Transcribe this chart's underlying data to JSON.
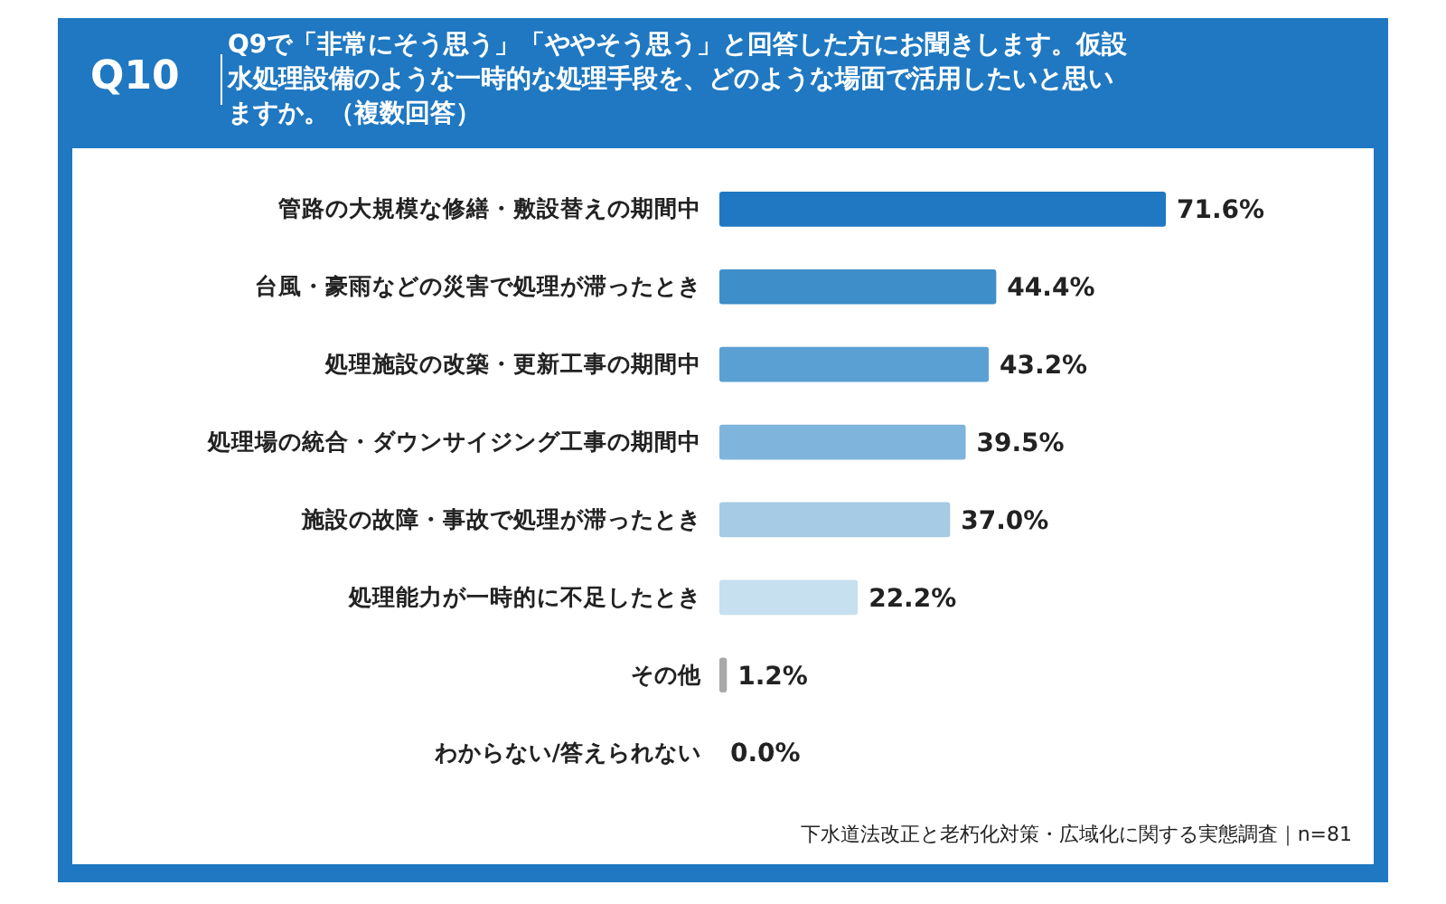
{
  "chart_data": {
    "type": "bar",
    "orientation": "horizontal",
    "title": "Q10",
    "subtitle": "Q9で「非常にそう思う」「ややそう思う」と回答した方にお聞きします。仮設水処理設備のような一時的な処理手段を、どのような場面で活用したいと思いますか。（複数回答）",
    "categories": [
      "管路の大規模な修繕・敷設替えの期間中",
      "台風・豪雨などの災害で処理が滞ったとき",
      "処理施設の改築・更新工事の期間中",
      "処理場の統合・ダウンサイジング工事の期間中",
      "施設の故障・事故で処理が滞ったとき",
      "処理能力が一時的に不足したとき",
      "その他",
      "わからない/答えられない"
    ],
    "values": [
      71.6,
      44.4,
      43.2,
      39.5,
      37.0,
      22.2,
      1.2,
      0.0
    ],
    "colors": [
      "#1f78c1",
      "#3d8ec9",
      "#5ba0d2",
      "#7fb5dc",
      "#a5cbe5",
      "#c6e0ef",
      "#a9a9a9",
      "#cccccc"
    ],
    "value_labels": [
      "71.6%",
      "44.4%",
      "43.2%",
      "39.5%",
      "37.0%",
      "22.2%",
      "1.2%",
      "0.0%"
    ],
    "annotations": [
      "下水道法改正と老朽化対策・広域化に関する実態調査｜n=81"
    ]
  }
}
